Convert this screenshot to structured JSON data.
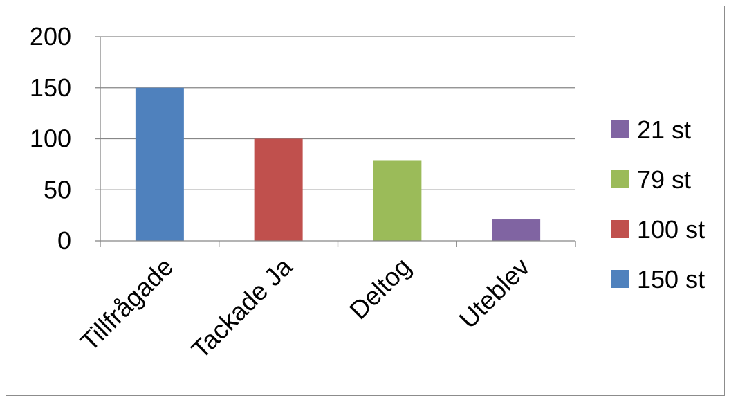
{
  "chart_data": {
    "type": "bar",
    "title": "",
    "xlabel": "",
    "ylabel": "",
    "categories": [
      "Tillfrågade",
      "Tackade Ja",
      "Deltog",
      "Uteblev"
    ],
    "values": [
      150,
      100,
      79,
      21
    ],
    "colors": [
      "#4f81bd",
      "#c0504d",
      "#9bbb59",
      "#8064a2"
    ],
    "ylim": [
      0,
      200
    ],
    "yticks": [
      0,
      50,
      100,
      150,
      200
    ],
    "grid": true,
    "legend": {
      "placement": "right",
      "entries": [
        {
          "label": "21 st",
          "color": "#8064a2"
        },
        {
          "label": "79 st",
          "color": "#9bbb59"
        },
        {
          "label": "100 st",
          "color": "#c0504d"
        },
        {
          "label": "150 st",
          "color": "#4f81bd"
        }
      ]
    },
    "gridline_color": "#878787",
    "axis_color": "#878787"
  }
}
